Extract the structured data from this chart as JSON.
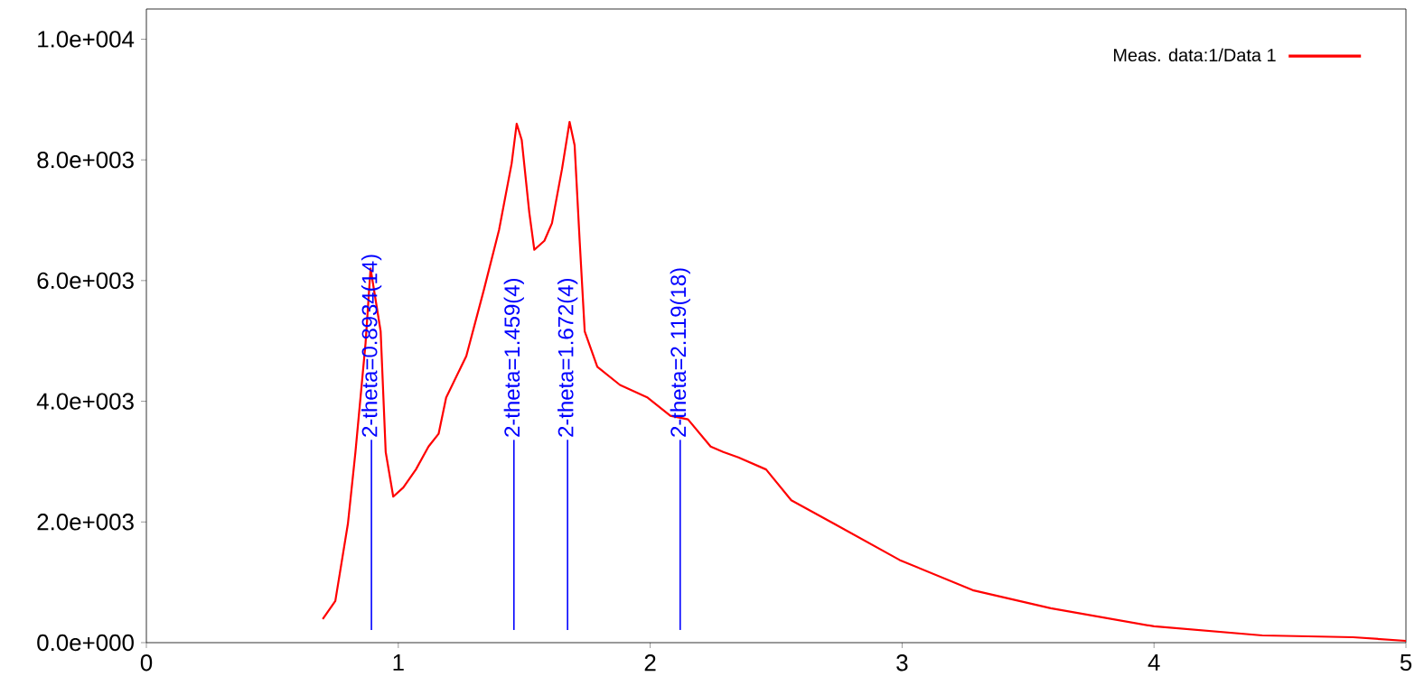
{
  "chart_data": {
    "type": "line",
    "xlim": [
      0,
      5
    ],
    "xticks": [
      0,
      1,
      2,
      3,
      4,
      5
    ],
    "ylim": [
      0,
      10500
    ],
    "yticks": [
      {
        "value": 0,
        "label": "0.0e+000"
      },
      {
        "value": 2000,
        "label": "2.0e+003"
      },
      {
        "value": 4000,
        "label": "4.0e+003"
      },
      {
        "value": 6000,
        "label": "6.0e+003"
      },
      {
        "value": 8000,
        "label": "8.0e+003"
      },
      {
        "value": 10000,
        "label": "1.0e+004"
      }
    ],
    "grid": false,
    "legend": "top right",
    "marker": "none",
    "line_style": "solid",
    "series": [
      {
        "name": "Meas. data:1/Data 1",
        "color": "#ff0000",
        "x": [
          0.7,
          0.75,
          0.8,
          0.83,
          0.87,
          0.89,
          0.93,
          0.95,
          0.98,
          1.02,
          1.07,
          1.12,
          1.16,
          1.19,
          1.27,
          1.34,
          1.4,
          1.45,
          1.47,
          1.49,
          1.52,
          1.54,
          1.58,
          1.61,
          1.65,
          1.68,
          1.7,
          1.72,
          1.74,
          1.79,
          1.88,
          1.99,
          2.08,
          2.15,
          2.24,
          2.29,
          2.35,
          2.46,
          2.56,
          2.73,
          2.99,
          3.28,
          3.59,
          4.0,
          4.43,
          4.79,
          5.0
        ],
        "values": [
          390,
          690,
          1970,
          3160,
          4960,
          6200,
          5160,
          3160,
          2420,
          2570,
          2870,
          3250,
          3460,
          4060,
          4750,
          5850,
          6840,
          7940,
          8600,
          8330,
          7130,
          6510,
          6660,
          6950,
          7850,
          8630,
          8240,
          6660,
          5160,
          4570,
          4270,
          4060,
          3760,
          3700,
          3250,
          3160,
          3070,
          2870,
          2360,
          1970,
          1370,
          870,
          570,
          270,
          120,
          90,
          30
        ]
      }
    ],
    "ref_lines": [
      {
        "axis": "x",
        "value": 0.8934,
        "label": "2-theta=0.8934(14)",
        "color": "#0000ff"
      },
      {
        "axis": "x",
        "value": 1.459,
        "label": "2-theta=1.459(4)",
        "color": "#0000ff"
      },
      {
        "axis": "x",
        "value": 1.672,
        "label": "2-theta=1.672(4)",
        "color": "#0000ff"
      },
      {
        "axis": "x",
        "value": 2.119,
        "label": "2-theta=2.119(18)",
        "color": "#0000ff"
      }
    ]
  }
}
